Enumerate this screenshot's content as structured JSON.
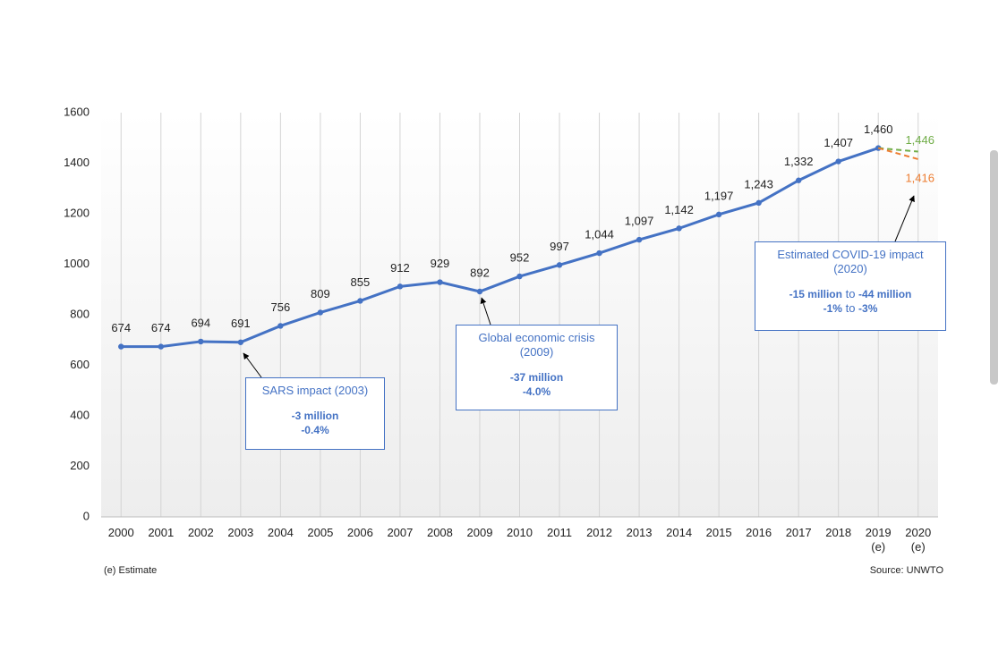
{
  "chart_data": {
    "type": "line",
    "categories": [
      "2000",
      "2001",
      "2002",
      "2003",
      "2004",
      "2005",
      "2006",
      "2007",
      "2008",
      "2009",
      "2010",
      "2011",
      "2012",
      "2013",
      "2014",
      "2015",
      "2016",
      "2017",
      "2018",
      "2019\n(e)",
      "2020\n(e)"
    ],
    "series": [
      {
        "color": "#4472c4",
        "dashed": false,
        "values": [
          674,
          674,
          694,
          691,
          756,
          809,
          855,
          912,
          929,
          892,
          952,
          997,
          1044,
          1097,
          1142,
          1197,
          1243,
          1332,
          1407,
          1460,
          null
        ],
        "value_labels": [
          "674",
          "674",
          "694",
          "691",
          "756",
          "809",
          "855",
          "912",
          "929",
          "892",
          "952",
          "997",
          "1,044",
          "1,097",
          "1,142",
          "1,197",
          "1,243",
          "1,332",
          "1,407",
          "1,460",
          null
        ]
      },
      {
        "color": "#70ad47",
        "dashed": true,
        "values": [
          null,
          null,
          null,
          null,
          null,
          null,
          null,
          null,
          null,
          null,
          null,
          null,
          null,
          null,
          null,
          null,
          null,
          null,
          null,
          1460,
          1446
        ],
        "value_labels": [
          null,
          null,
          null,
          null,
          null,
          null,
          null,
          null,
          null,
          null,
          null,
          null,
          null,
          null,
          null,
          null,
          null,
          null,
          null,
          null,
          "1,446"
        ]
      },
      {
        "color": "#ed7d31",
        "dashed": true,
        "values": [
          null,
          null,
          null,
          null,
          null,
          null,
          null,
          null,
          null,
          null,
          null,
          null,
          null,
          null,
          null,
          null,
          null,
          null,
          null,
          1460,
          1416
        ],
        "value_labels": [
          null,
          null,
          null,
          null,
          null,
          null,
          null,
          null,
          null,
          null,
          null,
          null,
          null,
          null,
          null,
          null,
          null,
          null,
          null,
          null,
          "1,416"
        ]
      }
    ],
    "ylim": [
      0,
      1600
    ],
    "yticks": [
      0,
      200,
      400,
      600,
      800,
      1000,
      1200,
      1400,
      1600
    ],
    "grid": true,
    "annotations": [
      {
        "title": "SARS impact (2003)",
        "lines": [
          [
            {
              "text": "-3 million",
              "bold": true
            }
          ],
          [
            {
              "text": "-0.4%",
              "bold": true
            }
          ]
        ]
      },
      {
        "title": "Global economic crisis (2009)",
        "lines": [
          [
            {
              "text": "-37 million",
              "bold": true
            }
          ],
          [
            {
              "text": "-4.0%",
              "bold": true
            }
          ]
        ]
      },
      {
        "title": "Estimated  COVID-19 impact (2020)",
        "lines": [
          [
            {
              "text": "-15 million",
              "bold": true
            },
            {
              "text": "to",
              "bold": false
            },
            {
              "text": "-44 million",
              "bold": true
            }
          ],
          [
            {
              "text": "-1%",
              "bold": true
            },
            {
              "text": "to",
              "bold": false
            },
            {
              "text": "-3%",
              "bold": true
            }
          ]
        ]
      }
    ],
    "footnote": "(e) Estimate",
    "source": "Source: UNWTO"
  }
}
